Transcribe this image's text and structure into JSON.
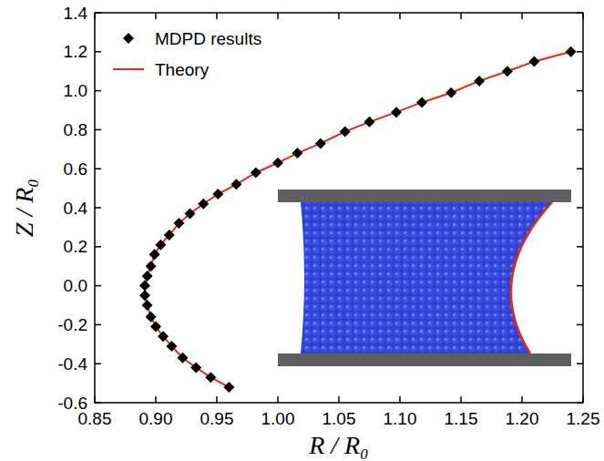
{
  "chart_data": {
    "type": "scatter",
    "x_label": "R / R₀",
    "y_label": "Z / R₀",
    "xlim": [
      0.85,
      1.25
    ],
    "ylim": [
      -0.6,
      1.4
    ],
    "xticks": [
      0.85,
      {
        "value": 0.9,
        "label": "0.90"
      },
      0.95,
      {
        "value": 1.0,
        "label": "1.00"
      },
      1.05,
      {
        "value": 1.1,
        "label": "1.10"
      },
      1.15,
      {
        "value": 1.2,
        "label": "1.20"
      },
      1.25
    ],
    "yticks": [
      -0.6,
      -0.4,
      -0.2,
      {
        "value": 0,
        "label": "0.0"
      },
      0.2,
      0.4,
      0.6,
      0.8,
      {
        "value": 1,
        "label": "1.0"
      },
      1.2,
      1.4
    ],
    "legend": "upper left",
    "grid": false,
    "series": [
      {
        "name": "MDPD results",
        "type": "scatter",
        "color": "#000000",
        "marker": "diamond",
        "x": [
          0.96,
          0.945,
          0.933,
          0.922,
          0.913,
          0.906,
          0.9,
          0.896,
          0.893,
          0.891,
          0.891,
          0.893,
          0.896,
          0.899,
          0.904,
          0.911,
          0.919,
          0.928,
          0.939,
          0.951,
          0.966,
          0.982,
          1.0,
          1.016,
          1.035,
          1.055,
          1.075,
          1.097,
          1.118,
          1.142,
          1.165,
          1.188,
          1.21,
          1.24
        ],
        "values": [
          -0.52,
          -0.47,
          -0.42,
          -0.37,
          -0.31,
          -0.26,
          -0.21,
          -0.16,
          -0.1,
          -0.05,
          0.0,
          0.05,
          0.1,
          0.16,
          0.21,
          0.26,
          0.32,
          0.37,
          0.42,
          0.47,
          0.52,
          0.58,
          0.63,
          0.68,
          0.73,
          0.79,
          0.84,
          0.89,
          0.94,
          0.99,
          1.05,
          1.1,
          1.15,
          1.2
        ]
      },
      {
        "name": "Theory",
        "type": "line",
        "color": "#e8261e",
        "line_style": "solid",
        "x": [
          0.96,
          0.945,
          0.933,
          0.922,
          0.913,
          0.906,
          0.9,
          0.896,
          0.893,
          0.891,
          0.891,
          0.893,
          0.896,
          0.899,
          0.904,
          0.911,
          0.919,
          0.928,
          0.939,
          0.951,
          0.966,
          0.982,
          1.0,
          1.016,
          1.035,
          1.055,
          1.075,
          1.097,
          1.118,
          1.142,
          1.165,
          1.188,
          1.21,
          1.24
        ],
        "values": [
          -0.52,
          -0.47,
          -0.42,
          -0.37,
          -0.31,
          -0.26,
          -0.21,
          -0.16,
          -0.1,
          -0.05,
          0.0,
          0.05,
          0.1,
          0.16,
          0.21,
          0.26,
          0.32,
          0.37,
          0.42,
          0.47,
          0.52,
          0.58,
          0.63,
          0.68,
          0.73,
          0.79,
          0.84,
          0.89,
          0.94,
          0.99,
          1.05,
          1.1,
          1.15,
          1.2
        ]
      }
    ]
  }
}
